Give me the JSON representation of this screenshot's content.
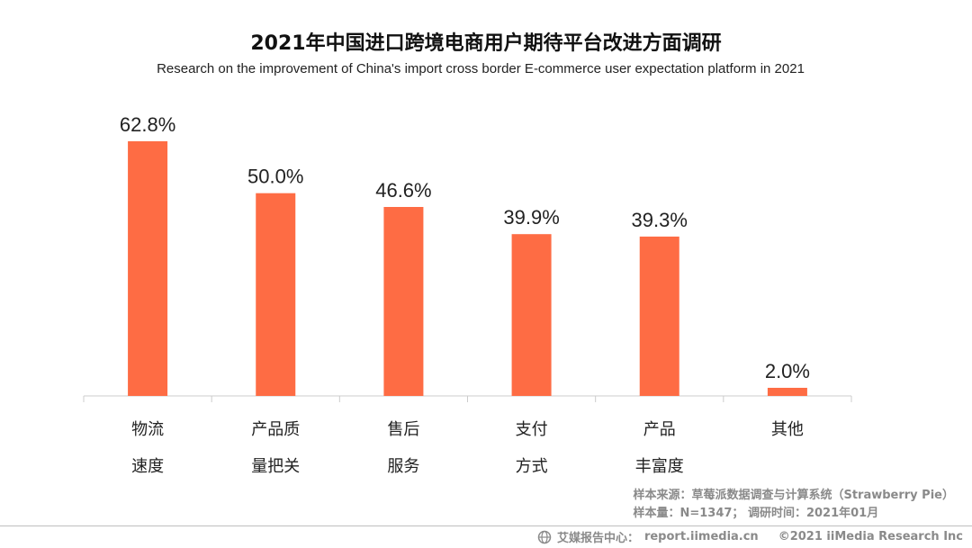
{
  "chart_data": {
    "type": "bar",
    "title": "2021年中国进口跨境电商用户期待平台改进方面调研",
    "subtitle": "Research on the improvement of China's import cross border E-commerce user expectation platform in 2021",
    "categories": [
      [
        "物流",
        "速度"
      ],
      [
        "产品质",
        "量把关"
      ],
      [
        "售后",
        "服务"
      ],
      [
        "支付",
        "方式"
      ],
      [
        "产品",
        "丰富度"
      ],
      [
        "其他"
      ]
    ],
    "values": [
      62.8,
      50.0,
      46.6,
      39.9,
      39.3,
      2.0
    ],
    "value_labels": [
      "62.8%",
      "50.0%",
      "46.6%",
      "39.9%",
      "39.3%",
      "2.0%"
    ],
    "unit": "%",
    "ylim": [
      0,
      70
    ],
    "xlabel": "",
    "ylabel": "",
    "grid": false,
    "legend": "none"
  },
  "colors": {
    "bar": "#fe6c44",
    "axis": "#cccccc"
  },
  "source": {
    "line1": "样本来源：草莓派数据调查与计算系统（Strawberry Pie）",
    "line2": "样本量：N=1347；  调研时间：2021年01月"
  },
  "footer": {
    "icon": "globe-icon",
    "brand": "艾媒报告中心：",
    "url": "report.iimedia.cn",
    "copyright": "©2021  iiMedia Research  Inc"
  }
}
